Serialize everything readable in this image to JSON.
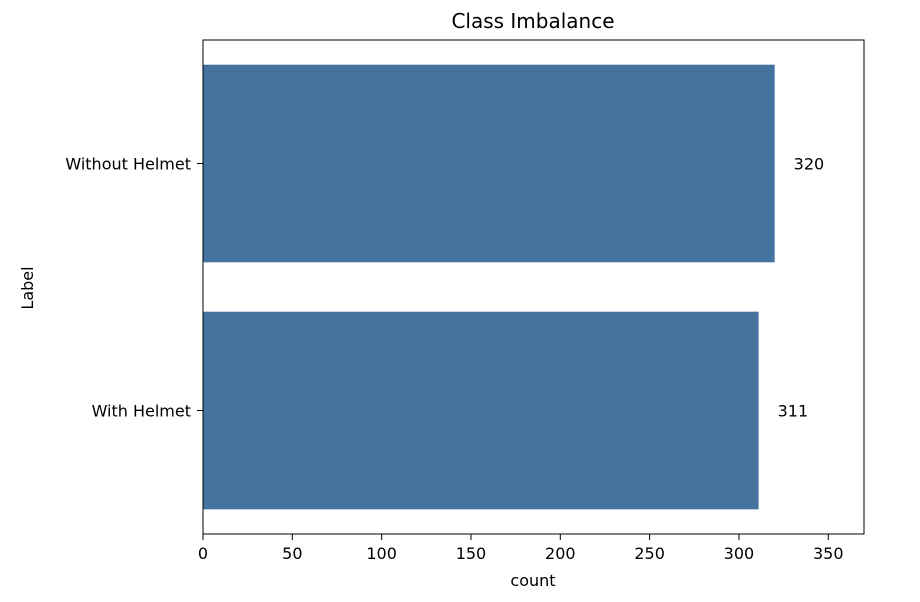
{
  "chart_data": {
    "type": "bar",
    "orientation": "horizontal",
    "title": "Class Imbalance",
    "xlabel": "count",
    "ylabel": "Label",
    "categories": [
      "Without Helmet",
      "With Helmet"
    ],
    "values": [
      320,
      311
    ],
    "data_labels": [
      "320",
      "311"
    ],
    "xlim": [
      0,
      370
    ],
    "xticks": [
      0,
      50,
      100,
      150,
      200,
      250,
      300,
      350
    ],
    "grid": false,
    "legend": "none",
    "colors": {
      "bar": "#4473a0"
    }
  }
}
